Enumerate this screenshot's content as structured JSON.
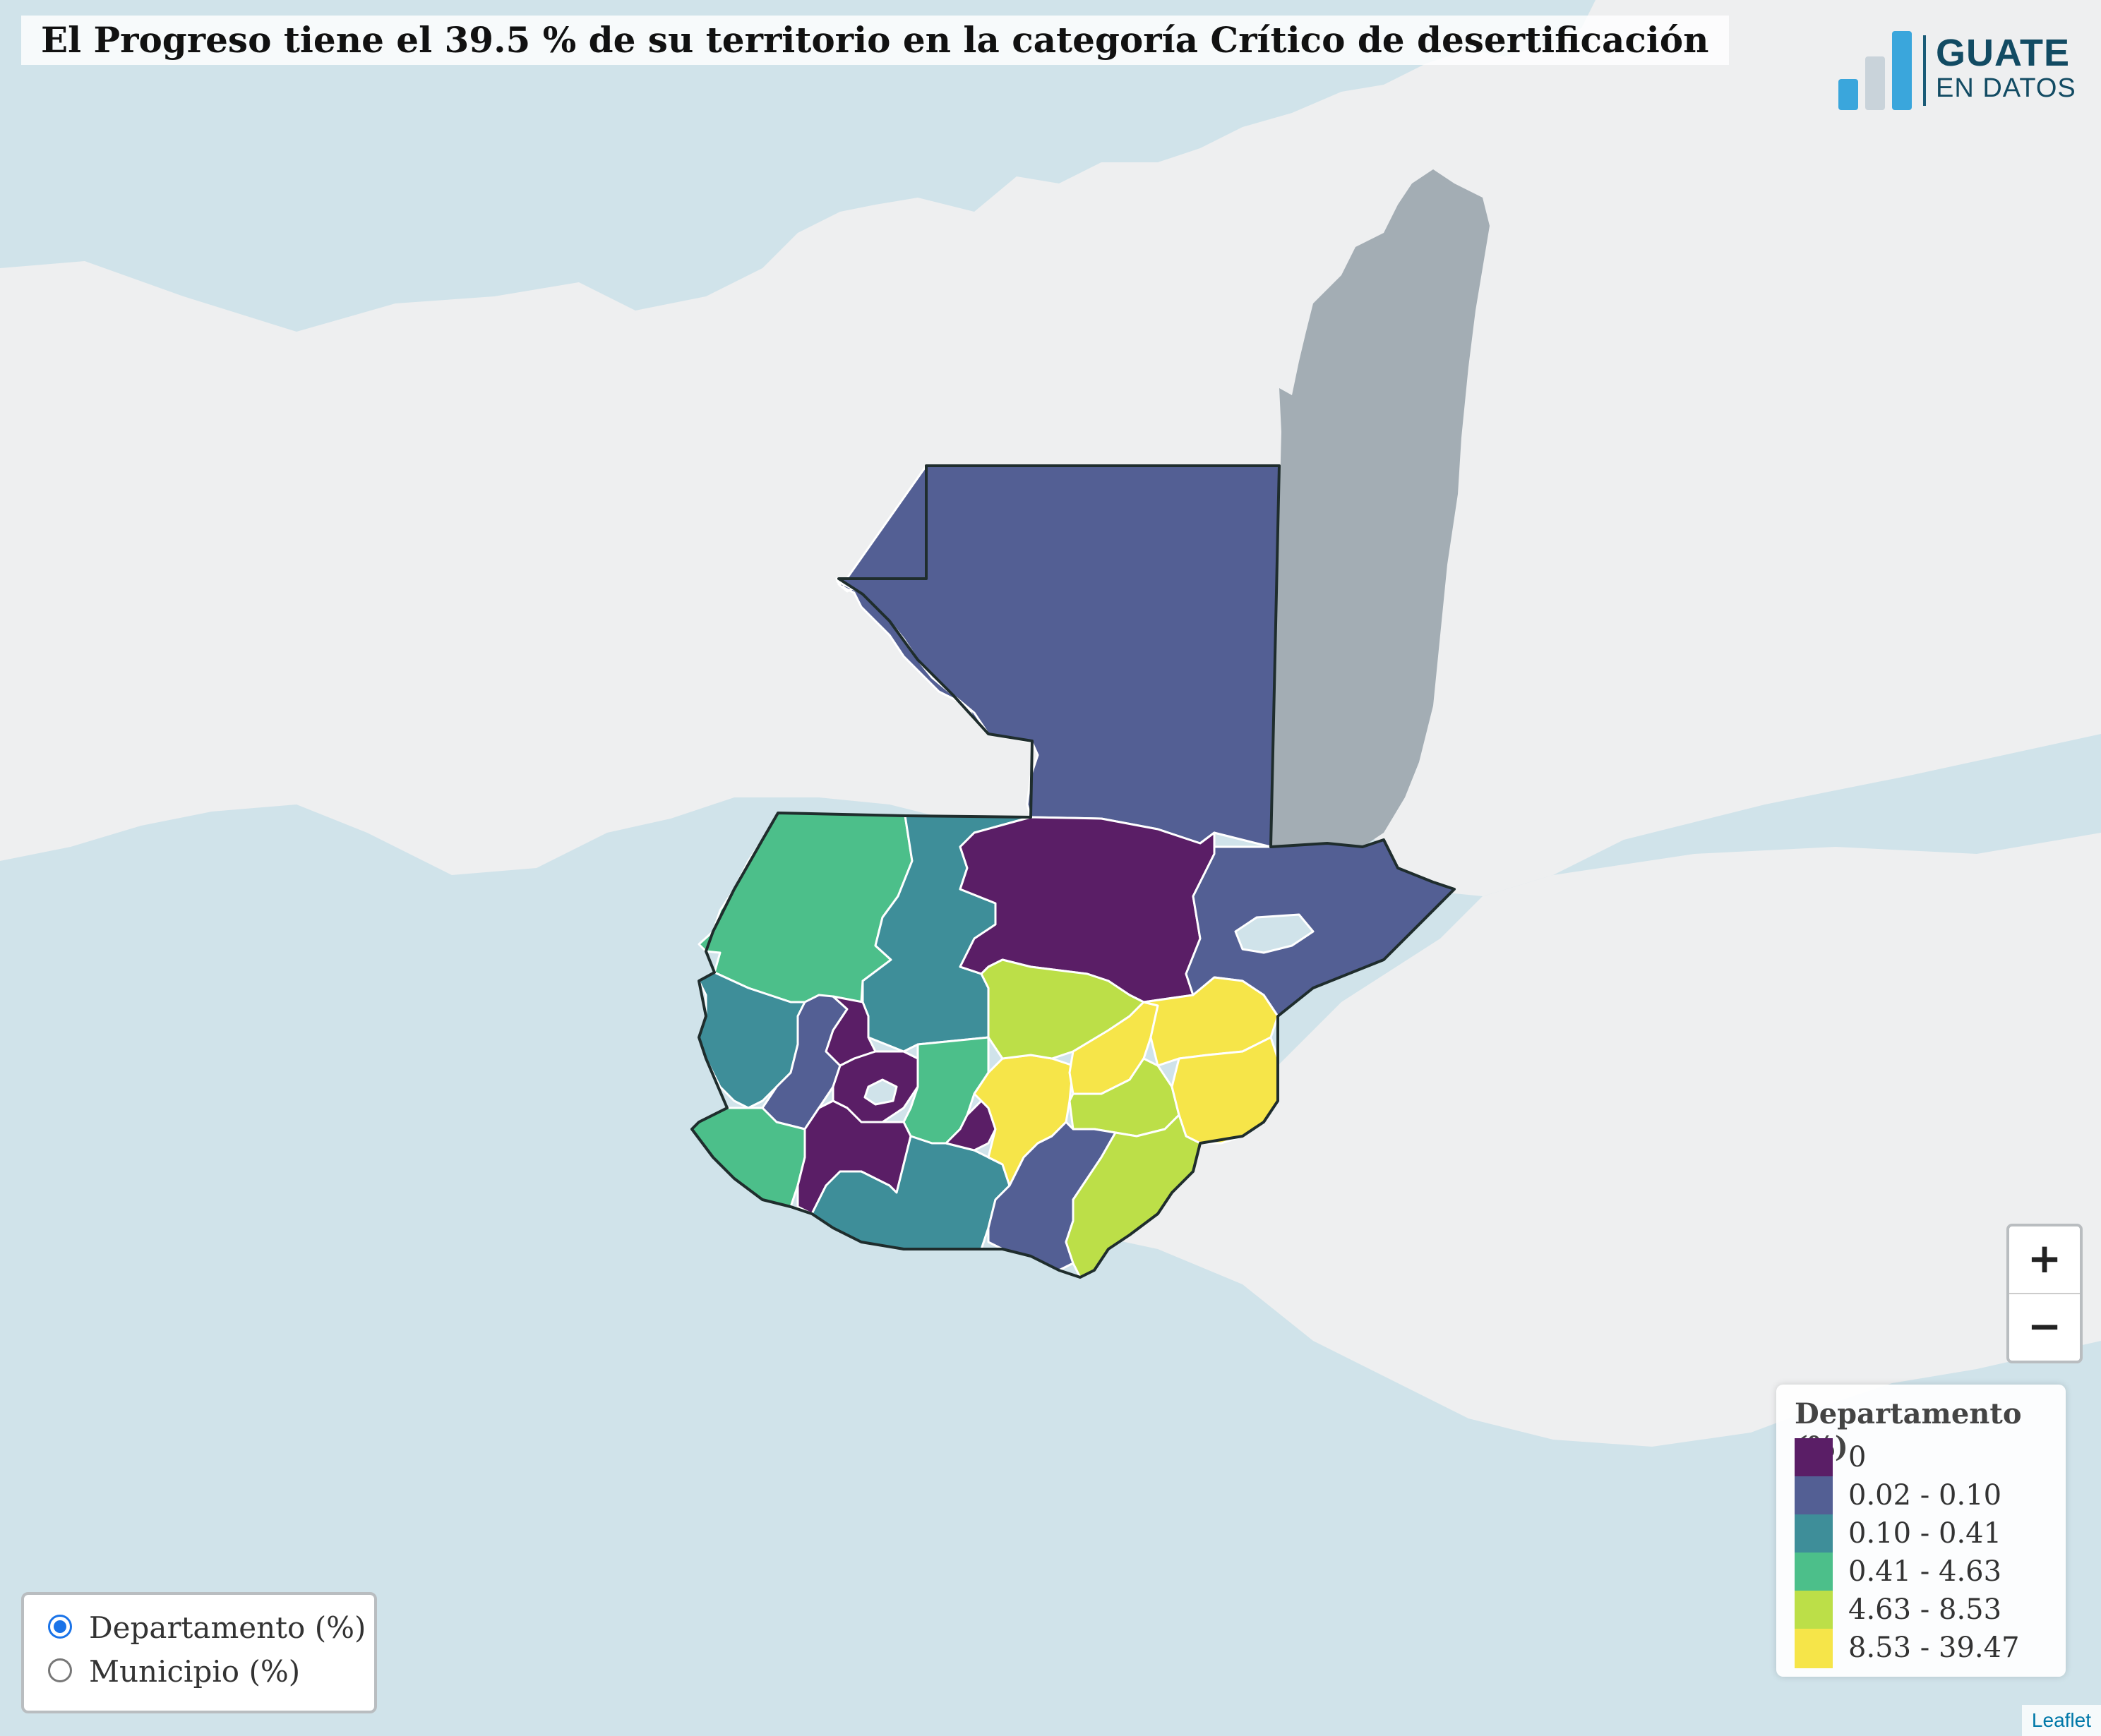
{
  "title": "El Progreso tiene el 39.5 % de su territorio en la categoría Crítico de desertificación",
  "logo": {
    "line1": "GUATE",
    "line2": "EN DATOS"
  },
  "zoom": {
    "in_label": "+",
    "out_label": "−"
  },
  "legend": {
    "title": "Departamento (%)",
    "items": [
      {
        "label": "0",
        "color": "#5a1e66"
      },
      {
        "label": "0.02 - 0.10",
        "color": "#535f94"
      },
      {
        "label": "0.10 - 0.41",
        "color": "#3e8e99"
      },
      {
        "label": "0.41 - 4.63",
        "color": "#4cbf8a"
      },
      {
        "label": "4.63 - 8.53",
        "color": "#bcdf48"
      },
      {
        "label": "8.53 - 39.47",
        "color": "#f6e549"
      }
    ]
  },
  "layers": {
    "options": [
      {
        "label": "Departamento (%)",
        "selected": true
      },
      {
        "label": "Municipio (%)",
        "selected": false
      }
    ]
  },
  "attribution": "Leaflet",
  "colors": {
    "water": "#d0e3ea",
    "land": "#eeeff0",
    "belize": "#a3adb4",
    "border": "#1f2d2d"
  }
}
